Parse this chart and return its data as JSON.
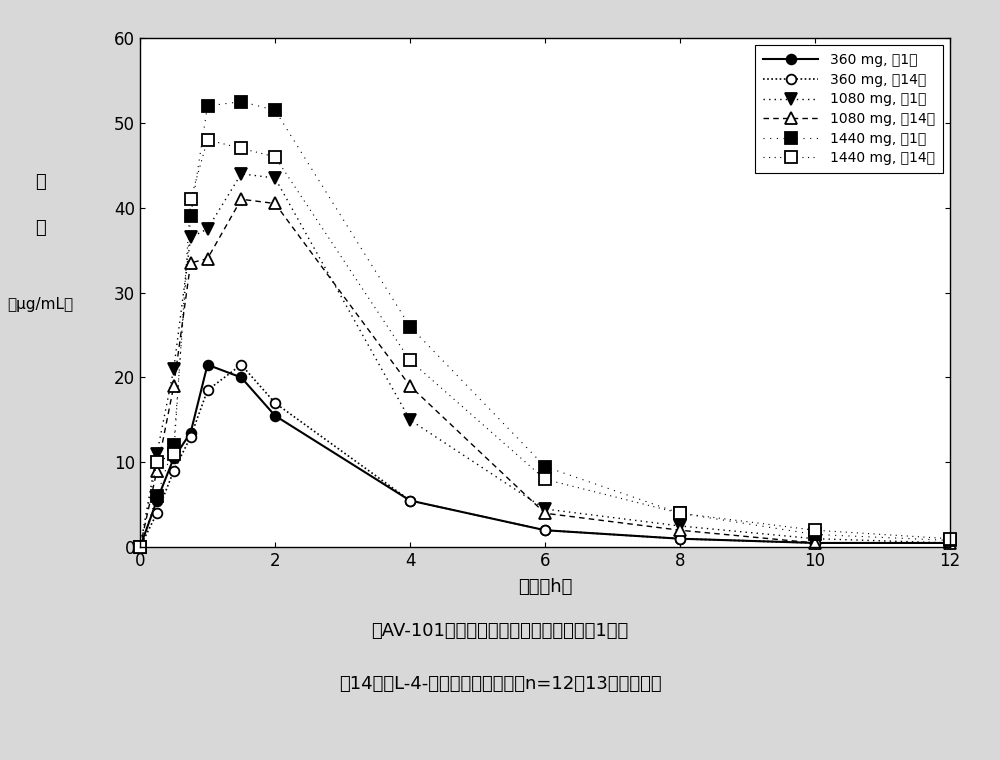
{
  "series": [
    {
      "label": "360 mg, 第1天",
      "x": [
        0,
        0.25,
        0.5,
        0.75,
        1.0,
        1.5,
        2.0,
        4.0,
        6.0,
        8.0,
        10.0,
        12.0
      ],
      "y": [
        0,
        5.5,
        10.5,
        13.5,
        21.5,
        20.0,
        15.5,
        5.5,
        2.0,
        1.0,
        0.5,
        0.5
      ],
      "linestyle": "solid",
      "marker": "o",
      "markersize": 7,
      "markerfacecolor": "black",
      "markeredgecolor": "black",
      "color": "black",
      "linewidth": 1.5
    },
    {
      "label": "360 mg, 第14天",
      "x": [
        0,
        0.25,
        0.5,
        0.75,
        1.0,
        1.5,
        2.0,
        4.0,
        6.0,
        8.0,
        10.0,
        12.0
      ],
      "y": [
        0,
        4.0,
        9.0,
        13.0,
        18.5,
        21.5,
        17.0,
        5.5,
        2.0,
        1.0,
        0.5,
        0.5
      ],
      "linestyle": "densely_dotted",
      "marker": "o",
      "markersize": 7,
      "markerfacecolor": "white",
      "markeredgecolor": "black",
      "color": "black",
      "linewidth": 1.2
    },
    {
      "label": "1080 mg, 第1天",
      "x": [
        0,
        0.25,
        0.5,
        0.75,
        1.0,
        1.5,
        2.0,
        4.0,
        6.0,
        8.0,
        10.0,
        12.0
      ],
      "y": [
        0,
        11.0,
        21.0,
        36.5,
        37.5,
        44.0,
        43.5,
        15.0,
        4.5,
        2.5,
        1.0,
        0.5
      ],
      "linestyle": "sparse_dotted",
      "marker": "v",
      "markersize": 8,
      "markerfacecolor": "black",
      "markeredgecolor": "black",
      "color": "black",
      "linewidth": 1.0
    },
    {
      "label": "1080 mg, 第14天",
      "x": [
        0,
        0.25,
        0.5,
        0.75,
        1.0,
        1.5,
        2.0,
        4.0,
        6.0,
        8.0,
        10.0,
        12.0
      ],
      "y": [
        0,
        9.0,
        19.0,
        33.5,
        34.0,
        41.0,
        40.5,
        19.0,
        4.0,
        2.0,
        0.5,
        0.5
      ],
      "linestyle": "sparse_dashed",
      "marker": "^",
      "markersize": 8,
      "markerfacecolor": "white",
      "markeredgecolor": "black",
      "color": "black",
      "linewidth": 1.0
    },
    {
      "label": "1440 mg, 第1天",
      "x": [
        0,
        0.25,
        0.5,
        0.75,
        1.0,
        1.5,
        2.0,
        4.0,
        6.0,
        8.0,
        10.0,
        12.0
      ],
      "y": [
        0,
        6.0,
        12.0,
        39.0,
        52.0,
        52.5,
        51.5,
        26.0,
        9.5,
        4.0,
        1.5,
        0.8
      ],
      "linestyle": "very_sparse_dotted",
      "marker": "s",
      "markersize": 9,
      "markerfacecolor": "black",
      "markeredgecolor": "black",
      "color": "black",
      "linewidth": 0.8
    },
    {
      "label": "1440 mg, 第14天",
      "x": [
        0,
        0.25,
        0.5,
        0.75,
        1.0,
        1.5,
        2.0,
        4.0,
        6.0,
        8.0,
        10.0,
        12.0
      ],
      "y": [
        0,
        10.0,
        11.0,
        41.0,
        48.0,
        47.0,
        46.0,
        22.0,
        8.0,
        4.0,
        2.0,
        1.0
      ],
      "linestyle": "very_sparse_dotted2",
      "marker": "s",
      "markersize": 9,
      "markerfacecolor": "white",
      "markeredgecolor": "black",
      "color": "black",
      "linewidth": 0.8
    }
  ],
  "xlabel": "时间（h）",
  "ylabel_top": "浓",
  "ylabel_mid": "度",
  "ylabel_bot": "（μg/mL）",
  "xlim": [
    0,
    12
  ],
  "ylim": [
    0,
    60
  ],
  "xticks": [
    0,
    2,
    4,
    6,
    8,
    10,
    12
  ],
  "yticks": [
    0,
    10,
    20,
    30,
    40,
    50,
    60
  ],
  "caption_line1": "在AV-101的每天一剂量的口服给药之后第1天和",
  "caption_line2": "第14天的L-4-氯犬尿氨酸的平均（n=12或13）血药浓度",
  "bg_color": "#d8d8d8",
  "plot_bg": "#ffffff",
  "figsize": [
    10.0,
    7.6
  ],
  "dpi": 100
}
